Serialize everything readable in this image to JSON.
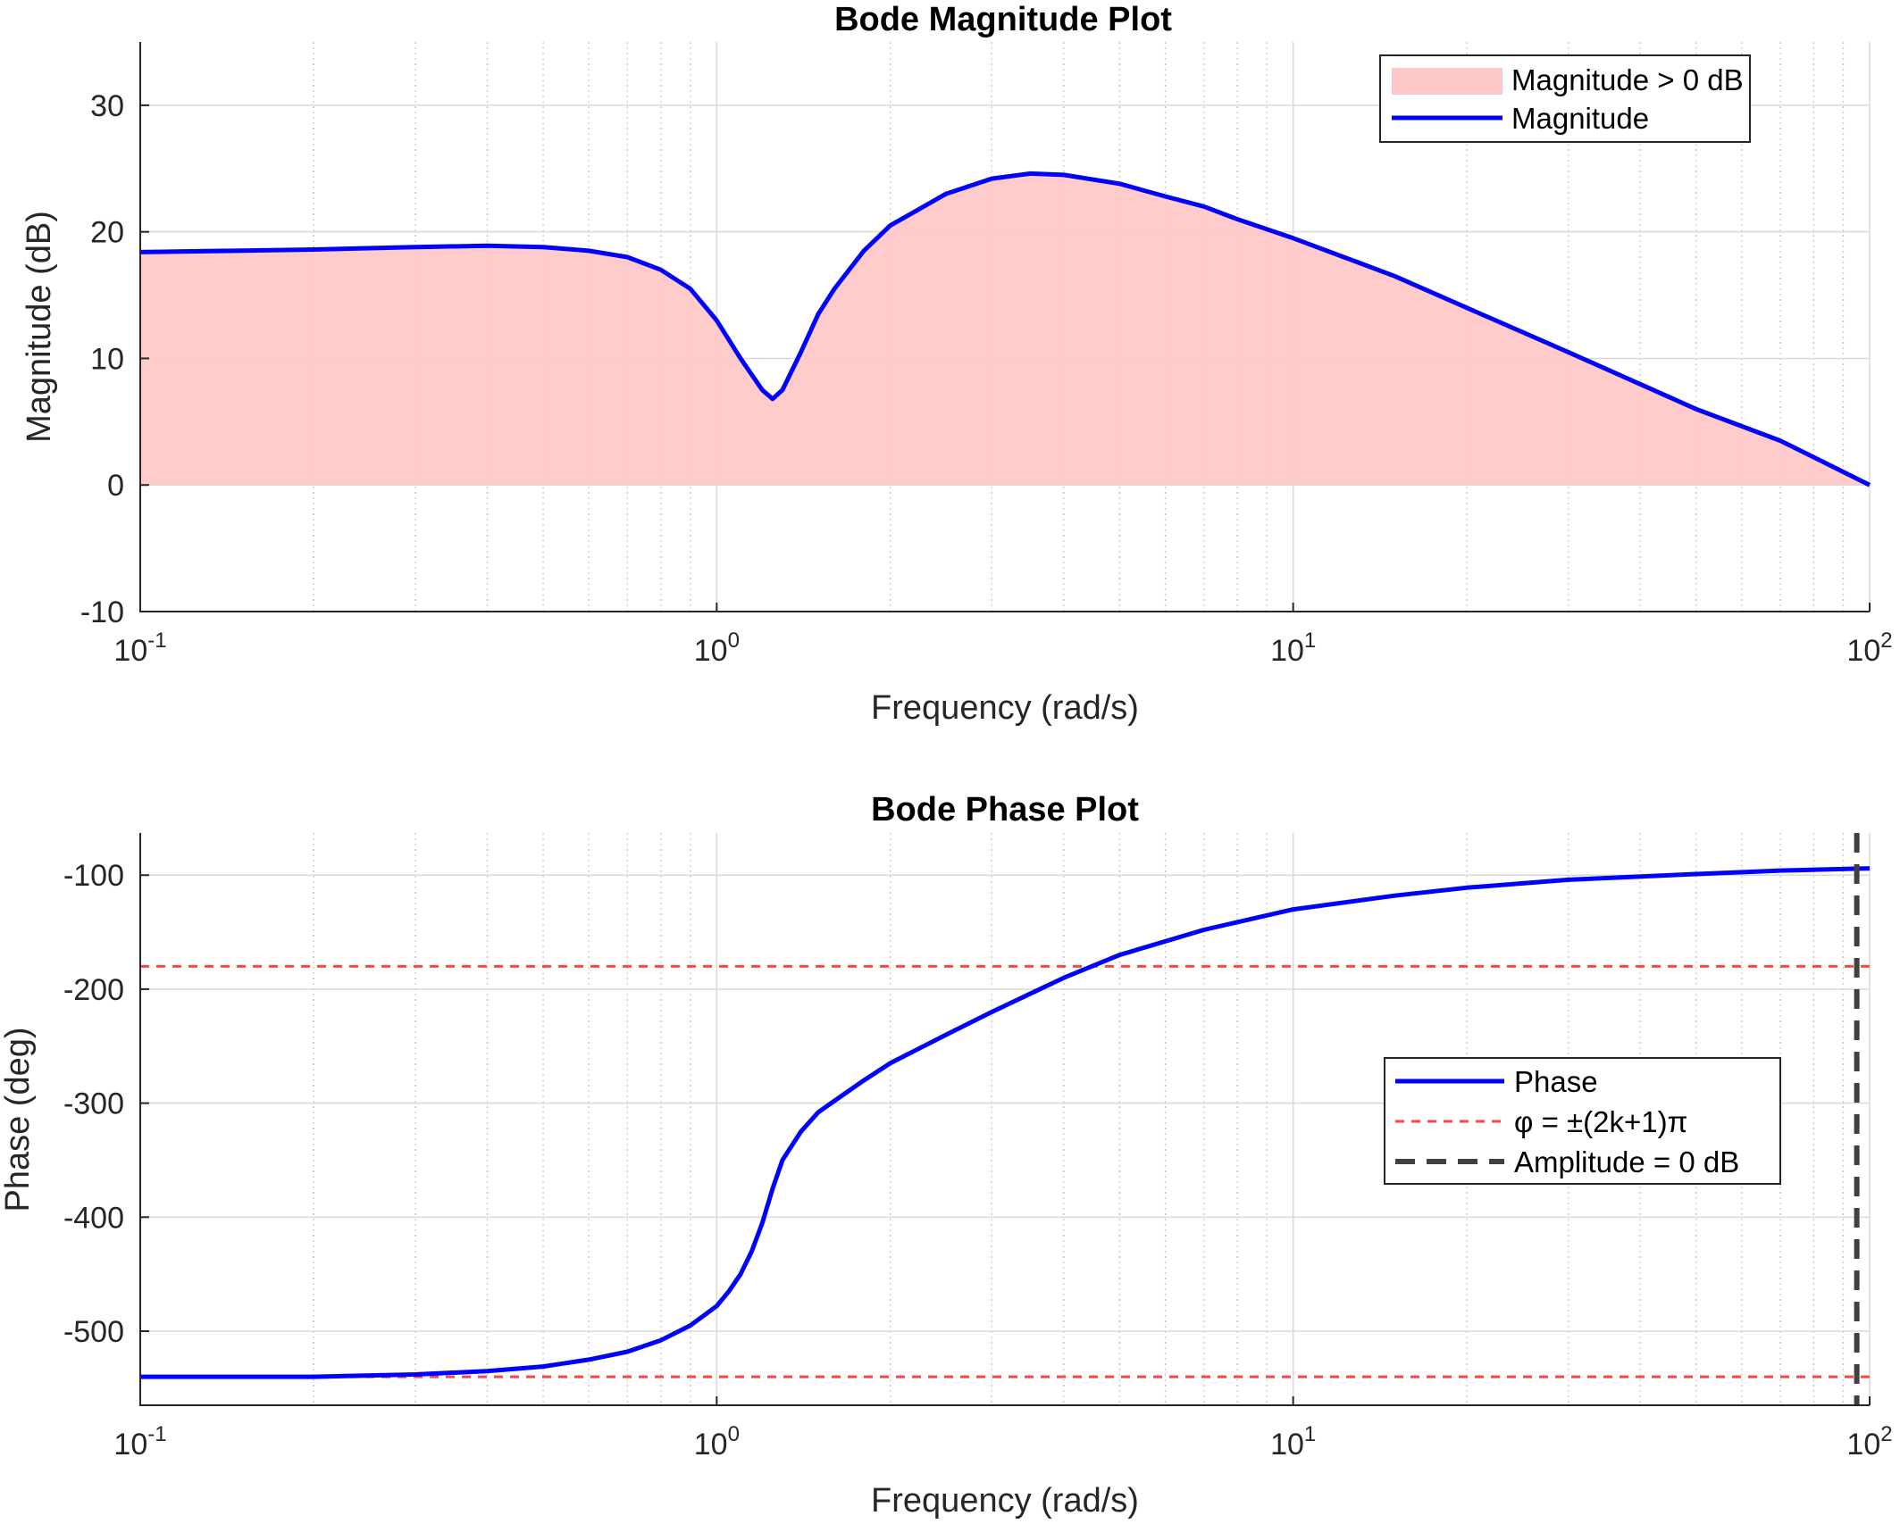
{
  "chart_data": [
    {
      "type": "area",
      "title": "Bode Magnitude Plot",
      "xlabel": "Frequency (rad/s)",
      "ylabel": "Magnitude (dB)",
      "xscale": "log",
      "xlim": [
        0.1,
        100
      ],
      "ylim": [
        -10,
        35
      ],
      "xticks": [
        0.1,
        1,
        10,
        100
      ],
      "xtick_labels": [
        {
          "base": "10",
          "exp": "-1"
        },
        {
          "base": "10",
          "exp": "0"
        },
        {
          "base": "10",
          "exp": "1"
        },
        {
          "base": "10",
          "exp": "2"
        }
      ],
      "yticks": [
        -10,
        0,
        10,
        20,
        30
      ],
      "ytick_labels": [
        "-10",
        "0",
        "10",
        "20",
        "30"
      ],
      "grid": true,
      "legend_position": "top-right",
      "series": [
        {
          "name": "Magnitude > 0 dB",
          "style": "fill",
          "color": "#ffc8c8"
        },
        {
          "name": "Magnitude",
          "style": "line",
          "color": "#0000ff"
        }
      ],
      "x": [
        0.1,
        0.2,
        0.3,
        0.4,
        0.5,
        0.6,
        0.7,
        0.8,
        0.9,
        1.0,
        1.1,
        1.2,
        1.25,
        1.3,
        1.4,
        1.5,
        1.6,
        1.8,
        2.0,
        2.5,
        3.0,
        3.5,
        4.0,
        5.0,
        6.0,
        7.0,
        8.0,
        10,
        15,
        20,
        30,
        50,
        70,
        100
      ],
      "y": [
        18.4,
        18.6,
        18.8,
        18.9,
        18.8,
        18.5,
        18.0,
        17.0,
        15.5,
        13.0,
        10.0,
        7.5,
        6.8,
        7.5,
        10.5,
        13.5,
        15.5,
        18.5,
        20.5,
        23.0,
        24.2,
        24.6,
        24.5,
        23.8,
        22.8,
        22.0,
        21.0,
        19.5,
        16.5,
        14.0,
        10.5,
        6.0,
        3.5,
        0.0
      ]
    },
    {
      "type": "line",
      "title": "Bode Phase Plot",
      "xlabel": "Frequency (rad/s)",
      "ylabel": "Phase (deg)",
      "xscale": "log",
      "xlim": [
        0.1,
        100
      ],
      "ylim": [
        -565,
        -63
      ],
      "xticks": [
        0.1,
        1,
        10,
        100
      ],
      "xtick_labels": [
        {
          "base": "10",
          "exp": "-1"
        },
        {
          "base": "10",
          "exp": "0"
        },
        {
          "base": "10",
          "exp": "1"
        },
        {
          "base": "10",
          "exp": "2"
        }
      ],
      "yticks": [
        -500,
        -400,
        -300,
        -200,
        -100
      ],
      "ytick_labels": [
        "-500",
        "-400",
        "-300",
        "-200",
        "-100"
      ],
      "grid": true,
      "legend_position": "center-right",
      "series": [
        {
          "name": "Phase",
          "style": "line",
          "color": "#0000ff",
          "x": [
            0.1,
            0.2,
            0.3,
            0.4,
            0.5,
            0.6,
            0.7,
            0.8,
            0.9,
            1.0,
            1.05,
            1.1,
            1.15,
            1.2,
            1.25,
            1.3,
            1.4,
            1.5,
            1.6,
            1.8,
            2.0,
            2.5,
            3.0,
            4.0,
            5.0,
            7.0,
            10,
            15,
            20,
            30,
            50,
            70,
            100
          ],
          "y": [
            -540,
            -540,
            -538,
            -535,
            -531,
            -525,
            -518,
            -508,
            -495,
            -478,
            -465,
            -450,
            -430,
            -405,
            -375,
            -350,
            -325,
            -308,
            -298,
            -280,
            -265,
            -240,
            -220,
            -190,
            -170,
            -148,
            -130,
            -118,
            -111,
            -104,
            -99,
            -96,
            -94
          ]
        },
        {
          "name": "φ = ±(2k+1)π",
          "style": "dashed",
          "color": "#ff4444",
          "y_values": [
            -180,
            -540
          ]
        },
        {
          "name": "Amplitude = 0 dB",
          "style": "dashed",
          "color": "#404040",
          "x_value": 95
        }
      ]
    }
  ]
}
